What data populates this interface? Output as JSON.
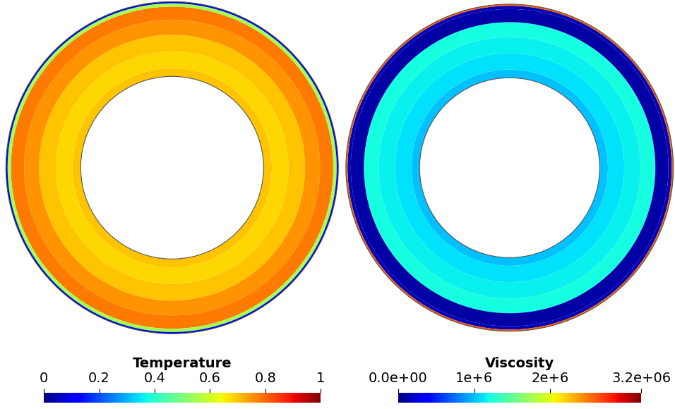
{
  "chart_data": [
    {
      "type": "radial_heatmap",
      "title": "Temperature",
      "radius_edges": [
        0.55,
        0.6,
        0.7,
        0.8,
        0.89,
        0.97,
        0.99,
        1.0
      ],
      "values": [
        0.7,
        0.68,
        0.7,
        0.75,
        0.78,
        0.55,
        0.1
      ],
      "colorbar": {
        "range": [
          0,
          1
        ],
        "ticks": [
          0,
          0.2,
          0.4,
          0.6,
          0.8,
          1
        ]
      }
    },
    {
      "type": "radial_heatmap",
      "title": "Viscosity",
      "radius_edges": [
        0.55,
        0.6,
        0.7,
        0.8,
        0.89,
        0.97,
        0.99,
        1.0
      ],
      "values": [
        1000000,
        1100000,
        1150000,
        1200000,
        100000,
        150000,
        2600000
      ],
      "colorbar": {
        "range": [
          0,
          3200000
        ],
        "ticks": [
          {
            "value": 0,
            "label": "0.0e+00"
          },
          {
            "value": 1000000,
            "label": "1e+6"
          },
          {
            "value": 2000000,
            "label": "2e+6"
          },
          {
            "value": 3200000,
            "label": "3.2e+06"
          }
        ]
      }
    }
  ]
}
